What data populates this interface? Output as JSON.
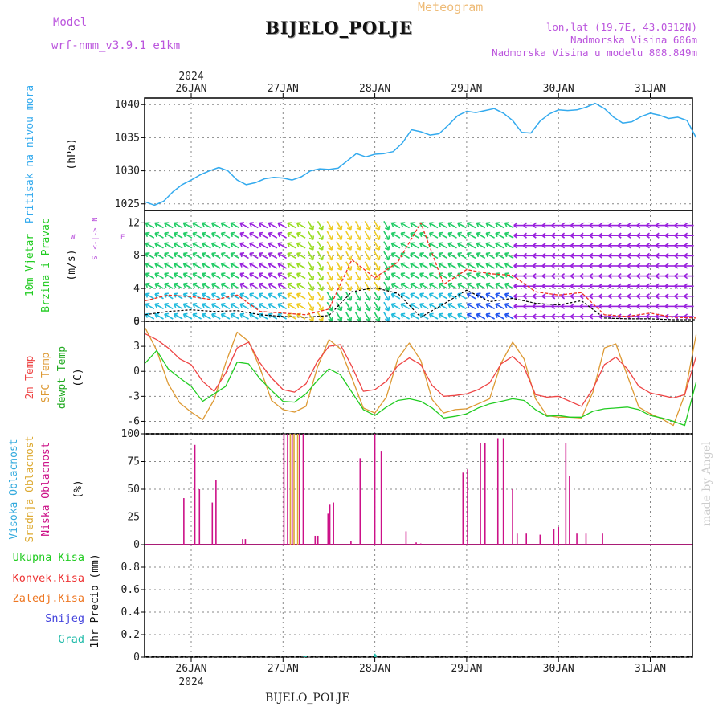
{
  "header": {
    "model_label": "Model",
    "model_name": "wrf-nmm_v3.9.1 e1km",
    "meteogram_label": "Meteogram",
    "station": "BIJELO_POLJE",
    "lonlat": "lon,lat (19.7E, 43.0312N)",
    "elevation": "Nadmorska Visina 606m",
    "model_elevation": "Nadmorska Visina u modelu 808.849m",
    "footer_station": "BIJELO_POLJE",
    "watermark": "made by Angel"
  },
  "x_axis": {
    "year": "2024",
    "days": [
      "26JAN",
      "27JAN",
      "28JAN",
      "29JAN",
      "30JAN",
      "31JAN"
    ]
  },
  "colors": {
    "pressure": "#33aaee",
    "temp": "#ee4444",
    "sfc_temp": "#dd9933",
    "dewpt": "#22cc22",
    "cloud_high": "#33aadd",
    "cloud_mid": "#ddaa33",
    "cloud_low": "#cc1188",
    "gust": "#ee3322",
    "speed": "#000000",
    "grid": "#888888"
  },
  "chart_data": [
    {
      "type": "line",
      "name": "pressure",
      "ylabels": [
        "Pritisak na nivou mora",
        "(hPa)"
      ],
      "ylim": [
        1024,
        1041
      ],
      "yticks": [
        1025,
        1030,
        1035,
        1040
      ],
      "x": [
        0,
        0.1,
        0.2,
        0.3,
        0.4,
        0.5,
        0.6,
        0.7,
        0.8,
        0.9,
        1.0,
        1.1,
        1.2,
        1.3,
        1.4,
        1.5,
        1.6,
        1.7,
        1.8,
        1.9,
        2.0,
        2.1,
        2.2,
        2.3,
        2.4,
        2.5,
        2.6,
        2.7,
        2.8,
        2.9,
        3.0,
        3.1,
        3.2,
        3.3,
        3.4,
        3.5,
        3.6,
        3.7,
        3.8,
        3.9,
        4.0,
        4.1,
        4.2,
        4.3,
        4.4,
        4.5,
        4.6,
        4.7,
        4.8,
        4.9,
        5.0,
        5.1,
        5.2,
        5.3,
        5.4,
        5.5,
        5.6,
        5.7,
        5.8,
        5.9,
        6.0
      ],
      "values": [
        1025.3,
        1024.8,
        1025.4,
        1026.8,
        1027.9,
        1028.6,
        1029.4,
        1030.0,
        1030.5,
        1030.0,
        1028.6,
        1027.9,
        1028.2,
        1028.8,
        1029.0,
        1028.9,
        1028.6,
        1029.1,
        1030.0,
        1030.3,
        1030.2,
        1030.4,
        1031.5,
        1032.6,
        1032.1,
        1032.5,
        1032.6,
        1032.9,
        1034.2,
        1036.2,
        1035.9,
        1035.4,
        1035.6,
        1036.9,
        1038.3,
        1039.0,
        1038.8,
        1039.1,
        1039.4,
        1038.7,
        1037.6,
        1035.8,
        1035.7,
        1037.5,
        1038.6,
        1039.2,
        1039.1,
        1039.2,
        1039.6,
        1040.2,
        1039.4,
        1038.1,
        1037.2,
        1037.4,
        1038.2,
        1038.7,
        1038.4,
        1037.9,
        1038.1,
        1037.6,
        1035.0
      ]
    },
    {
      "type": "line",
      "name": "wind",
      "ylabels": [
        "10m Vjetar",
        "Brzina i Pravac",
        "(m/s)"
      ],
      "compass": [
        "N",
        "W",
        "E",
        "S"
      ],
      "ylim": [
        0,
        13.5
      ],
      "yticks": [
        0,
        4,
        8,
        12
      ],
      "x": [
        0,
        0.25,
        0.5,
        0.75,
        1.0,
        1.25,
        1.5,
        1.75,
        2.0,
        2.25,
        2.5,
        2.75,
        3.0,
        3.25,
        3.5,
        3.75,
        4.0,
        4.25,
        4.5,
        4.75,
        5.0,
        5.25,
        5.5,
        5.75,
        6.0
      ],
      "series": [
        {
          "key": "gust",
          "values": [
            2.5,
            3.2,
            3.0,
            2.6,
            3.2,
            1.2,
            1.0,
            0.8,
            1.5,
            7.5,
            5.3,
            7.2,
            12.0,
            4.5,
            6.3,
            5.8,
            5.6,
            3.6,
            3.2,
            3.5,
            0.8,
            0.6,
            1.0,
            0.5,
            0.4
          ]
        },
        {
          "key": "speed",
          "values": [
            0.8,
            1.2,
            1.4,
            1.2,
            1.3,
            0.8,
            0.6,
            0.5,
            0.7,
            3.6,
            4.1,
            3.4,
            0.5,
            2.1,
            3.8,
            2.4,
            2.8,
            2.2,
            2.0,
            2.5,
            0.4,
            0.3,
            0.3,
            0.2,
            0.2
          ]
        }
      ]
    },
    {
      "type": "line",
      "name": "temperature",
      "ylabels": [
        "2m Temp",
        "SFC Temp",
        "dewpt Temp",
        "(C)"
      ],
      "ylim": [
        -7.5,
        6
      ],
      "yticks": [
        -6,
        -3,
        0,
        3,
        6
      ],
      "x": [
        0,
        0.125,
        0.25,
        0.375,
        0.5,
        0.625,
        0.75,
        0.875,
        1.0,
        1.125,
        1.25,
        1.375,
        1.5,
        1.625,
        1.75,
        1.875,
        2.0,
        2.125,
        2.25,
        2.375,
        2.5,
        2.625,
        2.75,
        2.875,
        3.0,
        3.125,
        3.25,
        3.375,
        3.5,
        3.625,
        3.75,
        3.875,
        4.0,
        4.125,
        4.25,
        4.375,
        4.5,
        4.625,
        4.75,
        4.875,
        5.0,
        5.125,
        5.25,
        5.375,
        5.5,
        5.625,
        5.75,
        5.875,
        6.0
      ],
      "series": [
        {
          "key": "temp",
          "values": [
            4.5,
            3.8,
            2.8,
            1.5,
            0.8,
            -1.2,
            -2.4,
            -0.2,
            2.8,
            3.5,
            1.0,
            -0.8,
            -2.2,
            -2.5,
            -1.5,
            1.2,
            3.0,
            3.2,
            0.6,
            -2.4,
            -2.2,
            -1.2,
            0.7,
            1.6,
            0.8,
            -1.7,
            -3.0,
            -2.9,
            -2.7,
            -2.2,
            -1.4,
            0.9,
            1.8,
            0.5,
            -2.8,
            -3.1,
            -3.0,
            -3.6,
            -4.2,
            -2.1,
            0.8,
            1.7,
            0.3,
            -1.8,
            -2.6,
            -2.9,
            -3.2,
            -2.8,
            1.8
          ]
        },
        {
          "key": "sfc",
          "values": [
            5.2,
            2.5,
            -1.5,
            -3.8,
            -4.9,
            -5.8,
            -3.4,
            1.0,
            4.7,
            3.6,
            0.4,
            -3.5,
            -4.6,
            -4.9,
            -4.2,
            0.5,
            3.8,
            2.7,
            -0.8,
            -4.4,
            -5.0,
            -3.1,
            1.5,
            3.4,
            1.3,
            -3.4,
            -5.0,
            -4.6,
            -4.5,
            -3.9,
            -3.3,
            1.0,
            3.5,
            1.5,
            -3.3,
            -5.3,
            -5.5,
            -5.5,
            -5.6,
            -2.5,
            2.8,
            3.3,
            -0.5,
            -4.3,
            -5.1,
            -5.7,
            -6.5,
            -2.8,
            4.4
          ]
        },
        {
          "key": "dewpt",
          "values": [
            1.0,
            2.5,
            0.3,
            -0.8,
            -1.8,
            -3.6,
            -2.7,
            -1.8,
            1.1,
            0.9,
            -0.9,
            -2.3,
            -3.6,
            -3.7,
            -2.7,
            -1.1,
            0.3,
            -0.4,
            -2.5,
            -4.6,
            -5.3,
            -4.3,
            -3.5,
            -3.3,
            -3.6,
            -4.4,
            -5.6,
            -5.4,
            -5.1,
            -4.4,
            -3.9,
            -3.6,
            -3.3,
            -3.5,
            -4.6,
            -5.4,
            -5.3,
            -5.5,
            -5.5,
            -4.8,
            -4.5,
            -4.4,
            -4.3,
            -4.6,
            -5.3,
            -5.6,
            -6.0,
            -6.5,
            -1.3
          ]
        }
      ]
    },
    {
      "type": "bar",
      "name": "cloud",
      "ylabels": [
        "Visoka Oblacnost",
        "Srednja Oblacnost",
        "Niska Oblacnost",
        "(%)"
      ],
      "ylim": [
        0,
        100
      ],
      "yticks": [
        0,
        25,
        50,
        75,
        100
      ],
      "series": [
        {
          "key": "low",
          "x": [
            -0.08,
            0.04,
            0.09,
            0.23,
            0.27,
            0.56,
            0.59,
            1.01,
            1.05,
            1.1,
            1.18,
            1.22,
            1.35,
            1.38,
            1.49,
            1.51,
            1.55,
            1.74,
            1.84,
            2.0,
            2.07,
            2.34,
            2.45,
            2.5,
            2.96,
            3.01,
            3.15,
            3.2,
            3.34,
            3.4,
            3.5,
            3.55,
            3.65,
            3.8,
            3.95,
            4.0,
            4.08,
            4.12,
            4.2,
            4.3,
            4.48
          ],
          "values": [
            42,
            90,
            50,
            38,
            58,
            5,
            5,
            100,
            100,
            100,
            100,
            100,
            8,
            8,
            28,
            36,
            38,
            3,
            78,
            100,
            84,
            12,
            2,
            1,
            65,
            68,
            92,
            92,
            96,
            96,
            50,
            10,
            10,
            9,
            14,
            16,
            92,
            62,
            10,
            10,
            10
          ]
        },
        {
          "key": "mid",
          "x": [
            1.08,
            1.12,
            1.16
          ],
          "values": [
            100,
            100,
            100
          ]
        }
      ]
    },
    {
      "type": "bar",
      "name": "precipitation",
      "ylabels": [
        "1hr Precip (mm)"
      ],
      "legend": [
        "Ukupna Kisa",
        "Konvek.Kisa",
        "Zaledj.Kisa",
        "Snijeg",
        "Grad"
      ],
      "ylim": [
        0,
        1.0
      ],
      "yticks": [
        0,
        0.2,
        0.4,
        0.6,
        0.8
      ],
      "x": [
        1.23,
        1.25,
        2.0,
        2.01
      ],
      "values": [
        0.01,
        0.01,
        0.03,
        0.02
      ]
    }
  ]
}
